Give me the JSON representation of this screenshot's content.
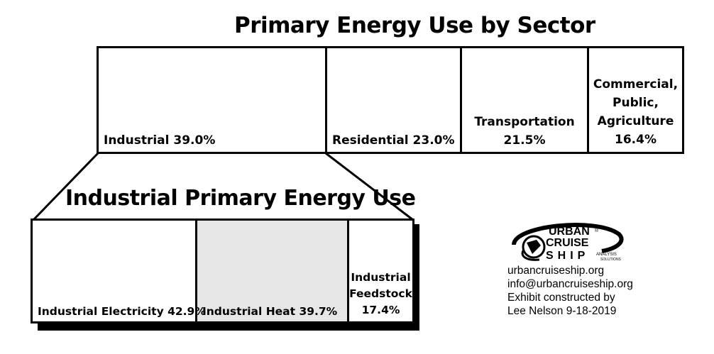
{
  "chart_data": [
    {
      "type": "treemap",
      "title": "Primary Energy Use by Sector",
      "categories": [
        "Industrial",
        "Residential",
        "Transportation",
        "Commercial, Public, Agriculture"
      ],
      "values": [
        39.0,
        23.0,
        21.5,
        16.4
      ],
      "labels": [
        "Industrial 39.0%",
        "Residential 23.0%",
        "Transportation 21.5%",
        "Commercial, Public, Agriculture 16.4%"
      ]
    },
    {
      "type": "treemap",
      "title": "Industrial Primary Energy Use",
      "categories": [
        "Industrial Electricity",
        "Industrial Heat",
        "Industrial Feedstock"
      ],
      "values": [
        42.9,
        39.7,
        17.4
      ],
      "labels": [
        "Industrial Electricity 42.9%",
        "Industrial Heat 39.7%",
        "Industrial Feedstock 17.4%"
      ]
    }
  ],
  "main": {
    "title": "Primary Energy Use by Sector",
    "industrial": "Industrial 39.0%",
    "residential": "Residential 23.0%",
    "transportation_line1": "Transportation",
    "transportation_line2": "21.5%",
    "commercial_line1": "Commercial,",
    "commercial_line2": "Public,",
    "commercial_line3": "Agriculture",
    "commercial_line4": "16.4%"
  },
  "industrial_breakdown": {
    "title": "Industrial Primary Energy Use",
    "electricity": "Industrial Electricity 42.9%",
    "heat": "Industrial Heat 39.7%",
    "feedstock_line1": "Industrial",
    "feedstock_line2": "Feedstock",
    "feedstock_line3": "17.4%",
    "heat_fill_color": "#e6e6e6"
  },
  "logo": {
    "word1": "URBAN",
    "word2": "CRUISE",
    "word3": "SHIP",
    "tag1": "ANALYSIS",
    "tag2": "SOLUTIONS",
    "reg": "®"
  },
  "info": {
    "line1": "urbancruiseship.org",
    "line2": "info@urbancruiseship.org",
    "line3": "Exhibit constructed by",
    "line4": "Lee Nelson 9-18-2019"
  }
}
